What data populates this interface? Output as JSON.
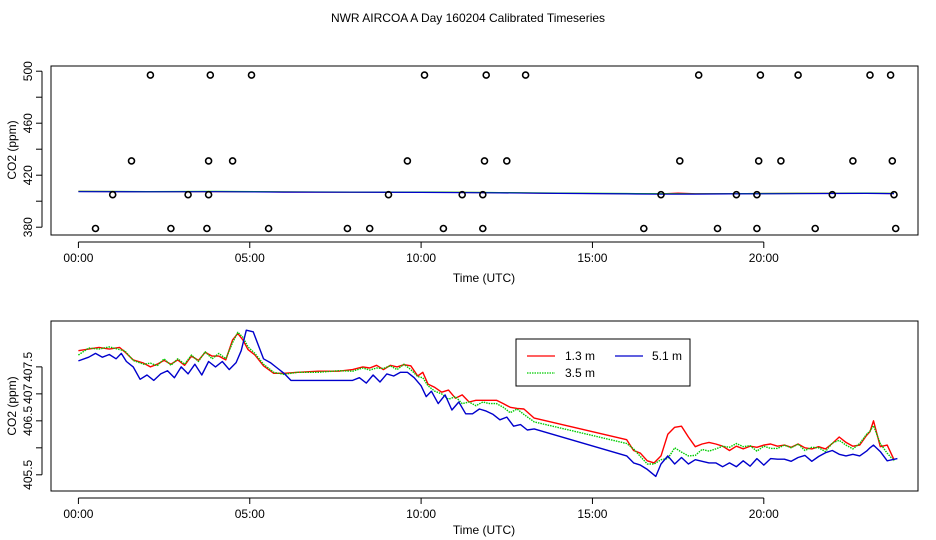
{
  "page": {
    "title": "NWR AIRCOA A  Day 160204  Calibrated Timeseries"
  },
  "chart_data": [
    {
      "id": "top",
      "type": "line",
      "xlabel": "Time (UTC)",
      "ylabel": "CO2 (ppm)",
      "xlim": [
        -0.8,
        24.5
      ],
      "ylim": [
        374,
        504
      ],
      "xticks": [
        {
          "value": 0,
          "label": "00:00"
        },
        {
          "value": 5,
          "label": "05:00"
        },
        {
          "value": 10,
          "label": "10:00"
        },
        {
          "value": 15,
          "label": "15:00"
        },
        {
          "value": 20,
          "label": "20:00"
        }
      ],
      "yticks": [
        {
          "value": 380,
          "label": "380"
        },
        {
          "value": 400,
          "label": ""
        },
        {
          "value": 420,
          "label": "420"
        },
        {
          "value": 440,
          "label": ""
        },
        {
          "value": 460,
          "label": "460"
        },
        {
          "value": 480,
          "label": ""
        },
        {
          "value": 500,
          "label": "500"
        }
      ],
      "series": [
        {
          "name": "1.3 m",
          "color": "#ff0000",
          "width": 1.2,
          "x": [
            0,
            2,
            4,
            6,
            8,
            10,
            12,
            14,
            16,
            17,
            17.5,
            18,
            19,
            20,
            21,
            22,
            23,
            23.8
          ],
          "y": [
            407.5,
            407.3,
            407.4,
            407.1,
            406.9,
            406.9,
            406.6,
            406.1,
            405.8,
            405.7,
            406.2,
            405.8,
            405.8,
            405.9,
            406.0,
            406.0,
            406.1,
            405.9
          ]
        },
        {
          "name": "3.5 m",
          "color": "#00cc00",
          "width": 1.2,
          "x": [
            0,
            2,
            4,
            6,
            8,
            10,
            12,
            14,
            16,
            17,
            18,
            19,
            20,
            21,
            22,
            23,
            23.8
          ],
          "y": [
            407.6,
            407.4,
            407.5,
            407.2,
            407.0,
            407.0,
            406.7,
            406.2,
            405.9,
            405.8,
            405.7,
            405.8,
            405.9,
            406.0,
            406.1,
            406.2,
            406.0
          ]
        },
        {
          "name": "5.1 m",
          "color": "#0000cc",
          "width": 1.2,
          "x": [
            0,
            2,
            4,
            6,
            8,
            10,
            12,
            14,
            16,
            17,
            18,
            19,
            20,
            21,
            22,
            23,
            23.8
          ],
          "y": [
            407.3,
            407.2,
            407.3,
            407.0,
            406.9,
            406.8,
            406.5,
            406.0,
            405.6,
            405.4,
            405.5,
            405.6,
            405.7,
            405.8,
            405.9,
            406.0,
            405.8
          ]
        },
        {
          "name": "open-circles",
          "type": "scatter",
          "color": "#000000",
          "x": [
            2.1,
            3.85,
            5.05,
            10.1,
            11.9,
            13.05,
            18.1,
            19.9,
            21.0,
            23.1,
            23.7,
            1.55,
            3.8,
            4.5,
            9.6,
            11.85,
            12.5,
            17.55,
            19.85,
            20.5,
            22.6,
            23.75,
            1.0,
            3.2,
            3.8,
            9.05,
            11.2,
            11.8,
            17.0,
            19.2,
            19.8,
            22.0,
            23.8,
            0.5,
            2.7,
            3.75,
            5.55,
            7.85,
            8.5,
            10.65,
            11.8,
            16.5,
            18.65,
            19.8,
            21.5,
            23.85
          ],
          "y": [
            497,
            497,
            497,
            497,
            497,
            497,
            497,
            497,
            497,
            497,
            497,
            431,
            431,
            431,
            431,
            431,
            431,
            431,
            431,
            431,
            431,
            431,
            405,
            405,
            405,
            405,
            405,
            405,
            405,
            405,
            405,
            405,
            405,
            379,
            379,
            379,
            379,
            379,
            379,
            379,
            379,
            379,
            379,
            379,
            379,
            379
          ]
        }
      ]
    },
    {
      "id": "bottom",
      "type": "line",
      "xlabel": "Time (UTC)",
      "ylabel": "CO2 (ppm)",
      "xlim": [
        -0.8,
        24.5
      ],
      "ylim": [
        405.2,
        408.35
      ],
      "xticks": [
        {
          "value": 0,
          "label": "00:00"
        },
        {
          "value": 5,
          "label": "05:00"
        },
        {
          "value": 10,
          "label": "10:00"
        },
        {
          "value": 15,
          "label": "15:00"
        },
        {
          "value": 20,
          "label": "20:00"
        }
      ],
      "yticks": [
        {
          "value": 405.5,
          "label": "405.5"
        },
        {
          "value": 406.0,
          "label": ""
        },
        {
          "value": 406.5,
          "label": "406.5"
        },
        {
          "value": 407.0,
          "label": "407"
        },
        {
          "value": 407.5,
          "label": "407.5"
        }
      ],
      "legend": {
        "position": "top-center",
        "entries": [
          "1.3 m",
          "3.5 m",
          "5.1 m"
        ]
      },
      "series": [
        {
          "name": "1.3 m",
          "color": "#ff0000",
          "linestyle": "solid",
          "x": [
            0,
            0.3,
            0.6,
            0.9,
            1.2,
            1.35,
            1.6,
            1.9,
            2.1,
            2.3,
            2.5,
            2.7,
            2.9,
            3.1,
            3.3,
            3.5,
            3.7,
            3.9,
            4.1,
            4.3,
            4.5,
            4.65,
            4.8,
            4.95,
            5.15,
            5.4,
            5.7,
            6.0,
            6.4,
            7.0,
            7.6,
            8.0,
            8.3,
            8.5,
            8.7,
            8.9,
            9.1,
            9.3,
            9.5,
            9.7,
            9.9,
            10.05,
            10.2,
            10.4,
            10.6,
            10.8,
            11.0,
            11.2,
            11.4,
            11.6,
            11.8,
            12.0,
            12.2,
            12.4,
            12.6,
            12.8,
            13.0,
            13.3,
            16.0,
            16.2,
            16.4,
            16.6,
            16.8,
            17.0,
            17.2,
            17.4,
            17.6,
            17.8,
            18.0,
            18.2,
            18.4,
            18.6,
            18.8,
            19.0,
            19.2,
            19.4,
            19.6,
            19.8,
            20.0,
            20.2,
            20.4,
            20.6,
            20.8,
            21.0,
            21.2,
            21.4,
            21.6,
            21.8,
            22.0,
            22.2,
            22.4,
            22.6,
            22.8,
            23.0,
            23.1,
            23.2,
            23.4,
            23.6,
            23.8
          ],
          "y": [
            407.8,
            407.83,
            407.86,
            407.83,
            407.86,
            407.78,
            407.63,
            407.57,
            407.5,
            407.55,
            407.62,
            407.55,
            407.63,
            407.53,
            407.7,
            407.62,
            407.77,
            407.7,
            407.7,
            407.63,
            408.0,
            408.12,
            408.0,
            407.82,
            407.72,
            407.52,
            407.38,
            407.38,
            407.4,
            407.42,
            407.42,
            407.45,
            407.5,
            407.48,
            407.53,
            407.45,
            407.53,
            407.5,
            407.54,
            407.52,
            407.33,
            407.4,
            407.18,
            407.12,
            407.03,
            407.07,
            406.92,
            406.98,
            406.85,
            406.88,
            406.88,
            406.88,
            406.88,
            406.82,
            406.75,
            406.73,
            406.72,
            406.55,
            406.15,
            405.95,
            405.9,
            405.76,
            405.72,
            405.85,
            406.25,
            406.38,
            406.4,
            406.2,
            406.02,
            406.07,
            406.1,
            406.07,
            406.03,
            405.95,
            406.03,
            405.98,
            406.03,
            406.01,
            406.05,
            406.07,
            406.03,
            406.05,
            406.01,
            406.07,
            406.0,
            405.98,
            406.02,
            405.98,
            406.08,
            406.2,
            406.1,
            406.03,
            406.05,
            406.23,
            406.3,
            406.5,
            406.02,
            406.05,
            405.78
          ]
        },
        {
          "name": "3.5 m",
          "color": "#00cc00",
          "linestyle": "dotted",
          "x": [
            0,
            0.3,
            0.6,
            0.9,
            1.2,
            1.35,
            1.6,
            1.9,
            2.1,
            2.3,
            2.5,
            2.7,
            2.9,
            3.1,
            3.3,
            3.5,
            3.7,
            3.9,
            4.1,
            4.3,
            4.5,
            4.65,
            4.8,
            4.95,
            5.15,
            5.4,
            5.7,
            6.0,
            6.4,
            7.0,
            7.6,
            8.0,
            8.3,
            8.5,
            8.7,
            8.9,
            9.1,
            9.3,
            9.5,
            9.7,
            9.9,
            10.05,
            10.2,
            10.4,
            10.6,
            10.8,
            11.0,
            11.2,
            11.4,
            11.6,
            11.8,
            12.0,
            12.2,
            12.4,
            12.6,
            12.8,
            13.0,
            13.3,
            16.0,
            16.2,
            16.4,
            16.6,
            16.8,
            17.0,
            17.2,
            17.4,
            17.6,
            17.8,
            18.0,
            18.2,
            18.4,
            18.6,
            18.8,
            19.0,
            19.2,
            19.4,
            19.6,
            19.8,
            20.0,
            20.2,
            20.4,
            20.6,
            20.8,
            21.0,
            21.2,
            21.4,
            21.6,
            21.8,
            22.0,
            22.2,
            22.4,
            22.6,
            22.8,
            23.0,
            23.1,
            23.2,
            23.4,
            23.6,
            23.8
          ],
          "y": [
            407.72,
            407.85,
            407.83,
            407.87,
            407.82,
            407.8,
            407.62,
            407.55,
            407.57,
            407.52,
            407.65,
            407.53,
            407.65,
            407.55,
            407.72,
            407.6,
            407.78,
            407.65,
            407.75,
            407.65,
            407.95,
            408.14,
            408.05,
            407.87,
            407.75,
            407.55,
            407.4,
            407.36,
            407.4,
            407.4,
            407.43,
            407.42,
            407.48,
            407.44,
            407.48,
            407.47,
            407.52,
            407.45,
            407.55,
            407.45,
            407.32,
            407.3,
            407.15,
            407.05,
            407.0,
            406.9,
            406.95,
            406.82,
            406.85,
            406.78,
            406.85,
            406.82,
            406.82,
            406.75,
            406.65,
            406.72,
            406.62,
            406.48,
            406.08,
            405.98,
            405.84,
            405.7,
            405.7,
            405.78,
            405.8,
            406.0,
            405.92,
            405.85,
            405.86,
            405.97,
            405.94,
            405.98,
            406.03,
            406.01,
            406.08,
            406.02,
            406.04,
            405.94,
            406.03,
            405.99,
            405.99,
            406.05,
            406.0,
            406.07,
            405.95,
            406.01,
            406.0,
            405.93,
            406.09,
            406.14,
            406.05,
            405.98,
            406.08,
            406.25,
            406.31,
            406.41,
            406.08,
            405.9,
            405.76
          ]
        },
        {
          "name": "5.1 m",
          "color": "#0000cc",
          "linestyle": "solid",
          "x": [
            0,
            0.3,
            0.5,
            0.7,
            0.9,
            1.1,
            1.25,
            1.4,
            1.6,
            1.8,
            2.0,
            2.2,
            2.4,
            2.6,
            2.8,
            3.0,
            3.2,
            3.4,
            3.6,
            3.8,
            4.0,
            4.2,
            4.4,
            4.6,
            4.75,
            4.9,
            5.1,
            5.4,
            5.6,
            5.8,
            6.0,
            6.2,
            6.5,
            7.0,
            7.5,
            8.0,
            8.2,
            8.4,
            8.6,
            8.8,
            9.0,
            9.2,
            9.4,
            9.6,
            9.8,
            10.0,
            10.15,
            10.3,
            10.5,
            10.7,
            10.9,
            11.1,
            11.3,
            11.5,
            11.7,
            11.9,
            12.1,
            12.3,
            12.5,
            12.7,
            12.9,
            13.1,
            13.3,
            16.0,
            16.2,
            16.4,
            16.6,
            16.85,
            17.0,
            17.2,
            17.4,
            17.6,
            17.8,
            18.0,
            18.2,
            18.4,
            18.6,
            18.8,
            19.0,
            19.2,
            19.4,
            19.6,
            19.8,
            20.0,
            20.2,
            20.4,
            20.6,
            20.8,
            21.0,
            21.2,
            21.4,
            21.6,
            21.8,
            22.0,
            22.2,
            22.4,
            22.6,
            22.8,
            23.0,
            23.1,
            23.2,
            23.4,
            23.6,
            23.9
          ],
          "y": [
            407.61,
            407.68,
            407.75,
            407.68,
            407.73,
            407.65,
            407.75,
            407.6,
            407.5,
            407.27,
            407.35,
            407.25,
            407.37,
            407.43,
            407.3,
            407.5,
            407.37,
            407.55,
            407.35,
            407.6,
            407.5,
            407.6,
            407.45,
            407.58,
            407.8,
            408.18,
            408.15,
            407.65,
            407.58,
            407.48,
            407.38,
            407.25,
            407.25,
            407.25,
            407.25,
            407.25,
            407.3,
            407.2,
            407.35,
            407.22,
            407.37,
            407.33,
            407.4,
            407.4,
            407.3,
            407.15,
            406.95,
            407.05,
            406.82,
            406.98,
            406.7,
            406.85,
            406.63,
            406.63,
            406.72,
            406.68,
            406.62,
            406.52,
            406.57,
            406.4,
            406.43,
            406.33,
            406.35,
            405.85,
            405.72,
            405.68,
            405.6,
            405.47,
            405.7,
            405.85,
            405.7,
            405.82,
            405.7,
            405.78,
            405.75,
            405.72,
            405.72,
            405.65,
            405.72,
            405.65,
            405.76,
            405.66,
            405.8,
            405.68,
            405.8,
            405.79,
            405.79,
            405.75,
            405.82,
            405.86,
            405.75,
            405.84,
            405.91,
            405.95,
            405.88,
            405.85,
            405.88,
            405.85,
            405.94,
            406.0,
            406.05,
            405.93,
            405.76,
            405.8
          ]
        }
      ]
    }
  ]
}
